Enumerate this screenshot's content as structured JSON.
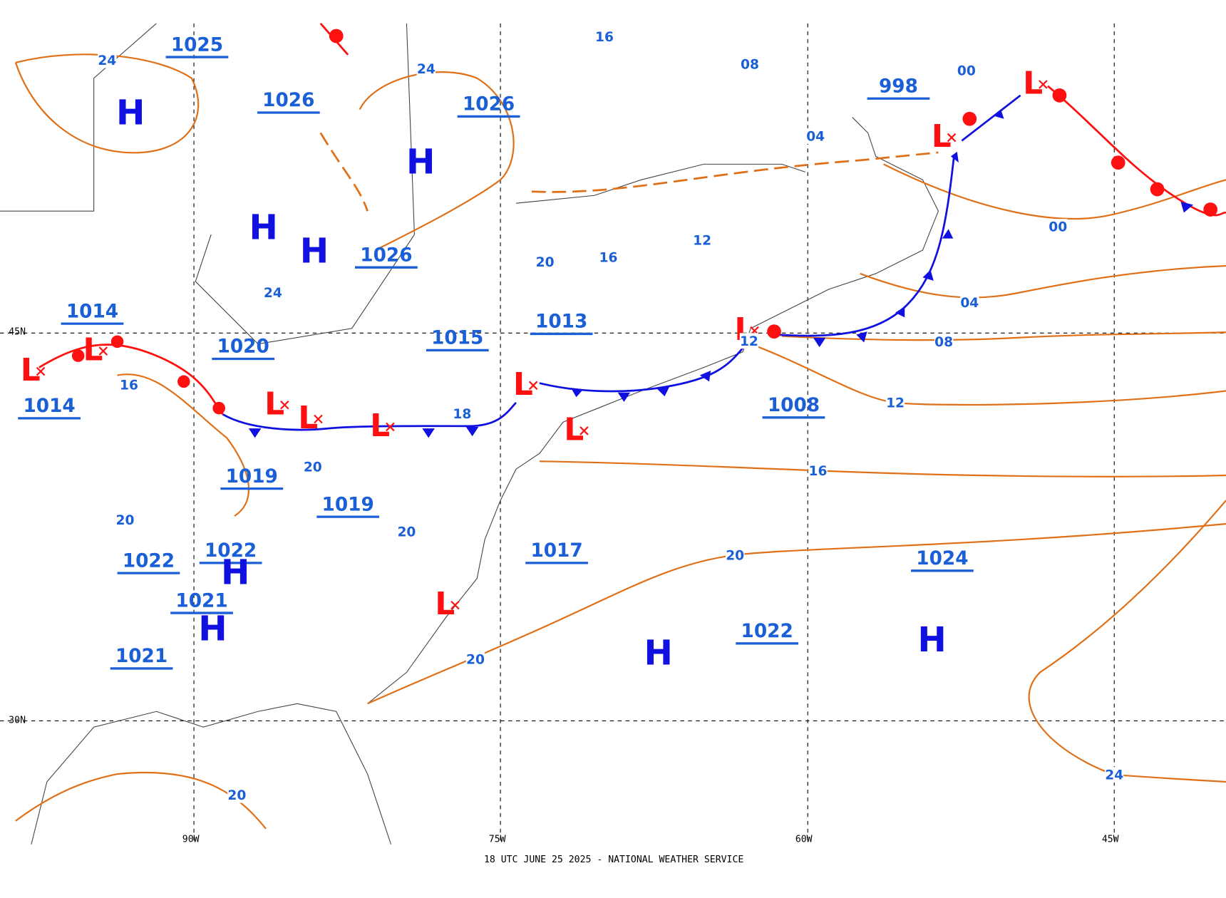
{
  "map": {
    "pressure_values": [
      "1025",
      "1026",
      "1026",
      "1026",
      "998",
      "1014",
      "1020",
      "1015",
      "1013",
      "1014",
      "1008",
      "1019",
      "1019",
      "1022",
      "1022",
      "1017",
      "1021",
      "1021",
      "1022",
      "1024"
    ],
    "highs": [
      "H",
      "H",
      "H",
      "H",
      "H",
      "H",
      "H",
      "H"
    ],
    "lows": [
      "L",
      "L",
      "L",
      "L",
      "L",
      "L",
      "L",
      "L",
      "L",
      "L",
      "L"
    ],
    "isobar_labels": [
      "24",
      "24",
      "16",
      "08",
      "00",
      "04",
      "00",
      "04",
      "08",
      "12",
      "16",
      "20",
      "24",
      "16",
      "18",
      "20",
      "20",
      "20",
      "20",
      "12",
      "16",
      "12",
      "20",
      "20",
      "24"
    ],
    "grid_labels": [
      "45N",
      "30N",
      "90W",
      "75W",
      "60W",
      "45W"
    ],
    "footer": "18 UTC JUNE 25 2025 - NATIONAL WEATHER SERVICE"
  }
}
